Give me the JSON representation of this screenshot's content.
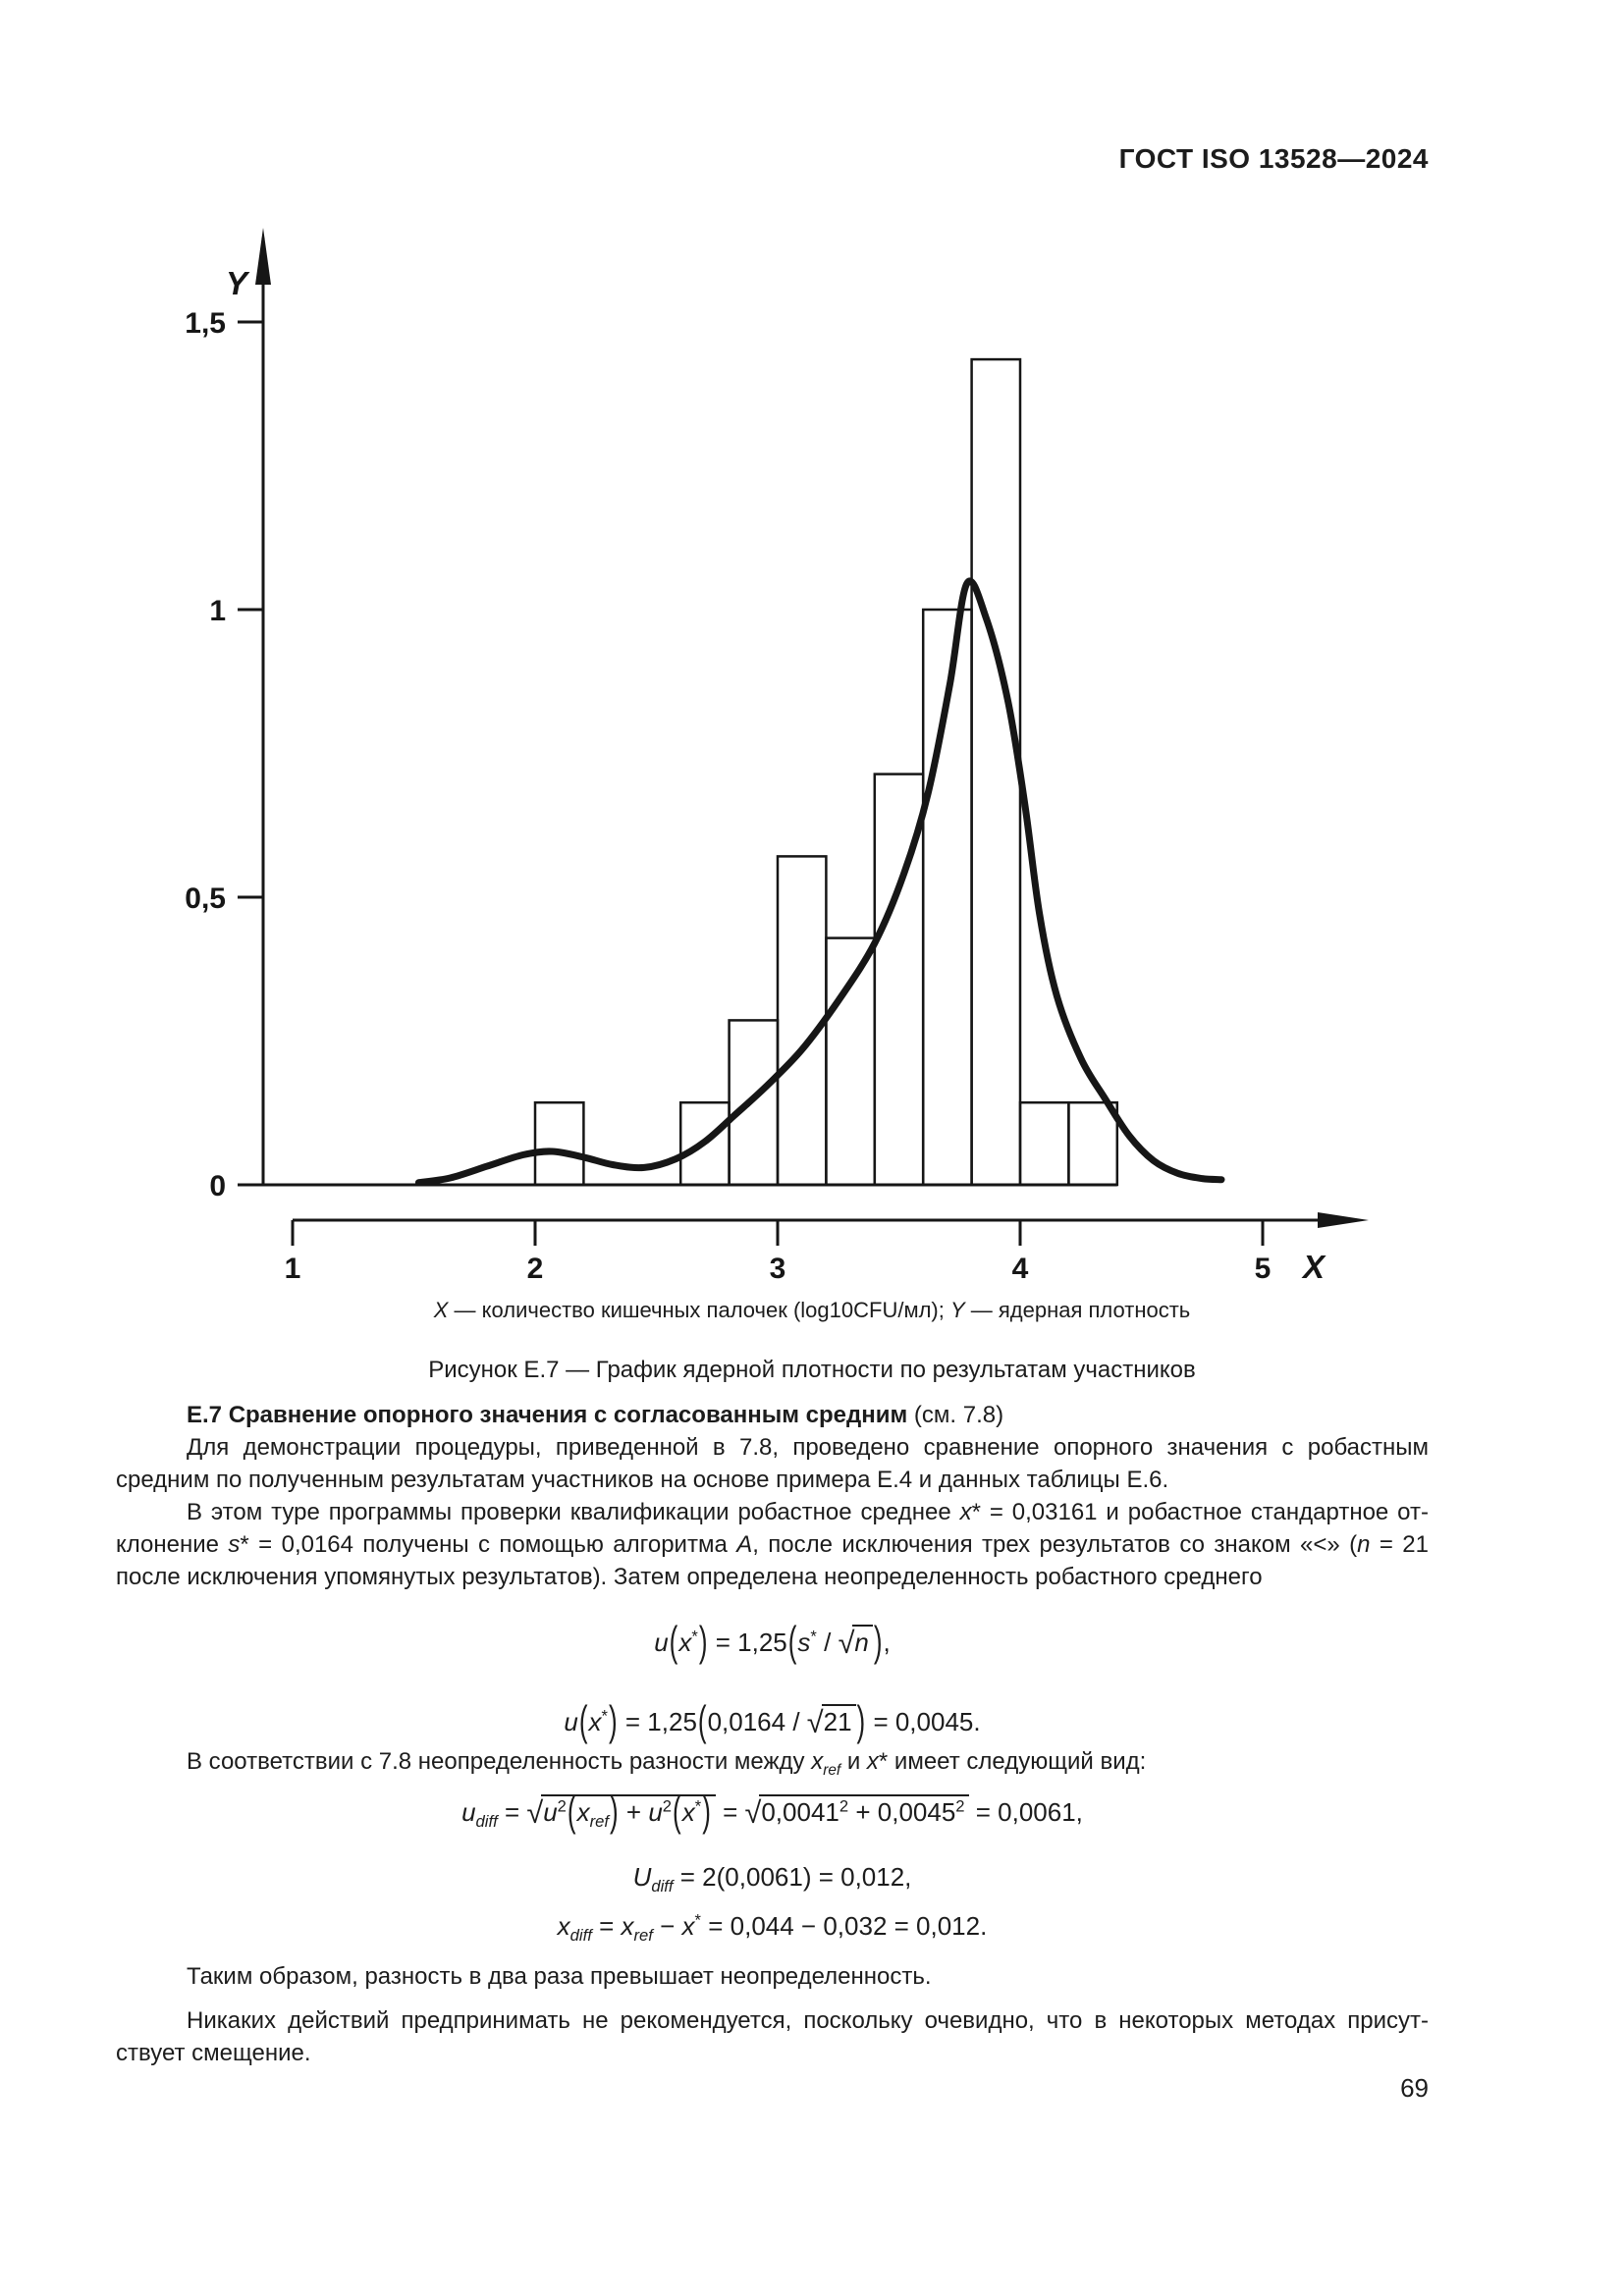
{
  "header": {
    "title": "ГОСТ ISO 13528—2024"
  },
  "page": {
    "number": "69"
  },
  "figure": {
    "caption_vars": "[i]X[/i] — количество кишечных палочек (log10CFU/мл); [i]Y[/i] — ядерная плотность",
    "caption_title": "Рисунок Е.7 — График ядерной плотности по результатам участников"
  },
  "chart_data": {
    "type": "bar",
    "subtype": "histogram-with-kde-curve",
    "title": "",
    "xlabel": "X",
    "ylabel": "Y",
    "xlim": [
      0.88,
      5.35
    ],
    "ylim": [
      0,
      1.64
    ],
    "grid": false,
    "legend": "none",
    "x_ticks": [
      1,
      2,
      3,
      4,
      5
    ],
    "y_ticks": [
      {
        "v": 0,
        "label": "0"
      },
      {
        "v": 0.5,
        "label": "0,5"
      },
      {
        "v": 1,
        "label": "1"
      },
      {
        "v": 1.5,
        "label": "1,5"
      }
    ],
    "bars": [
      {
        "x0": 2.0,
        "x1": 2.2,
        "h": 0.143
      },
      {
        "x0": 2.6,
        "x1": 2.8,
        "h": 0.143
      },
      {
        "x0": 2.8,
        "x1": 3.0,
        "h": 0.286
      },
      {
        "x0": 3.0,
        "x1": 3.2,
        "h": 0.571
      },
      {
        "x0": 3.2,
        "x1": 3.4,
        "h": 0.429
      },
      {
        "x0": 3.4,
        "x1": 3.6,
        "h": 0.714
      },
      {
        "x0": 3.6,
        "x1": 3.8,
        "h": 1.0
      },
      {
        "x0": 3.8,
        "x1": 4.0,
        "h": 1.435
      },
      {
        "x0": 4.0,
        "x1": 4.2,
        "h": 0.143
      },
      {
        "x0": 4.2,
        "x1": 4.4,
        "h": 0.143
      }
    ],
    "kde_curve": [
      [
        1.52,
        0.004
      ],
      [
        1.65,
        0.012
      ],
      [
        1.8,
        0.032
      ],
      [
        1.95,
        0.052
      ],
      [
        2.07,
        0.058
      ],
      [
        2.2,
        0.048
      ],
      [
        2.32,
        0.035
      ],
      [
        2.45,
        0.03
      ],
      [
        2.58,
        0.045
      ],
      [
        2.7,
        0.075
      ],
      [
        2.82,
        0.12
      ],
      [
        2.95,
        0.17
      ],
      [
        3.1,
        0.235
      ],
      [
        3.25,
        0.32
      ],
      [
        3.4,
        0.42
      ],
      [
        3.52,
        0.54
      ],
      [
        3.62,
        0.68
      ],
      [
        3.71,
        0.87
      ],
      [
        3.78,
        1.045
      ],
      [
        3.86,
        0.985
      ],
      [
        3.95,
        0.84
      ],
      [
        4.02,
        0.66
      ],
      [
        4.08,
        0.47
      ],
      [
        4.15,
        0.33
      ],
      [
        4.25,
        0.22
      ],
      [
        4.35,
        0.15
      ],
      [
        4.45,
        0.085
      ],
      [
        4.55,
        0.042
      ],
      [
        4.65,
        0.02
      ],
      [
        4.75,
        0.011
      ],
      [
        4.83,
        0.009
      ]
    ]
  },
  "section": {
    "heading_bold": "Е.7 Сравнение опорного значения с согласованным средним",
    "heading_normal": " (см. 7.8)",
    "paragraphs": {
      "p1": {
        "lines": [
          "Для демонстрации процедуры, приведенной в 7.8, проведено сравнение опорного значения с робастным",
          "средним по полученным результатам участников на основе примера Е.4 и данных таблицы Е.6."
        ]
      },
      "p2": {
        "lines": [
          "В этом туре программы проверки квалификации робастное среднее [i]x[/i]* = 0,03161 и робастное стандартное от-",
          "клонение [i]s[/i]* = 0,0164 получены с помощью алгоритма [i]А[/i], после исключения трех результатов со знаком «<» ([i]n[/i] = 21",
          "после исключения упомянутых результатов). Затем определена неопределенность робастного среднего"
        ]
      },
      "p3": {
        "lines": [
          "В соответствии с 7.8 неопределенность разности между [i]x[/i][sub]ref[/sub] и [i]x[/i]* имеет следующий вид:"
        ]
      },
      "p4": {
        "lines": [
          "Таким образом, разность в два раза превышает неопределенность."
        ]
      },
      "p5": {
        "lines": [
          "Никаких действий предпринимать не рекомендуется, поскольку очевидно, что в некоторых методах присут-",
          "ствует смещение."
        ]
      }
    },
    "formulas": {
      "f1": "[i]u[/i][bp]([/bp][i]x[/i][sup]*[/sup][bp])[/bp] = 1,25[bp]([/bp][i]s[/i][sup]*[/sup] / [sqrt][i]n[/i][/sqrt][bp])[/bp],",
      "f2": "[i]u[/i][bp]([/bp][i]x[/i][sup]*[/sup][bp])[/bp] = 1,25[bp]([/bp]0,0164 / [sqrt]21[/sqrt][bp])[/bp] = 0,0045.",
      "f3": "[i]u[/i][sub]diff[/sub] = [sqrt][i]u[/i][sup]2[/sup][bp]([/bp][i]x[/i][sub]ref[/sub][bp])[/bp] + [i]u[/i][sup]2[/sup][bp]([/bp][i]x[/i][sup]*[/sup][bp])[/bp][/sqrt] = [sqrt]0,0041[sup]2[/sup] + 0,0045[sup]2[/sup][/sqrt] = 0,0061,",
      "f4": "[i]U[/i][sub]diff[/sub] = 2(0,0061) = 0,012,",
      "f5": "[i]x[/i][sub]diff[/sub] = [i]x[/i][sub]ref[/sub] − [i]x[/i][sup]*[/sup] = 0,044 − 0,032 = 0,012."
    }
  }
}
